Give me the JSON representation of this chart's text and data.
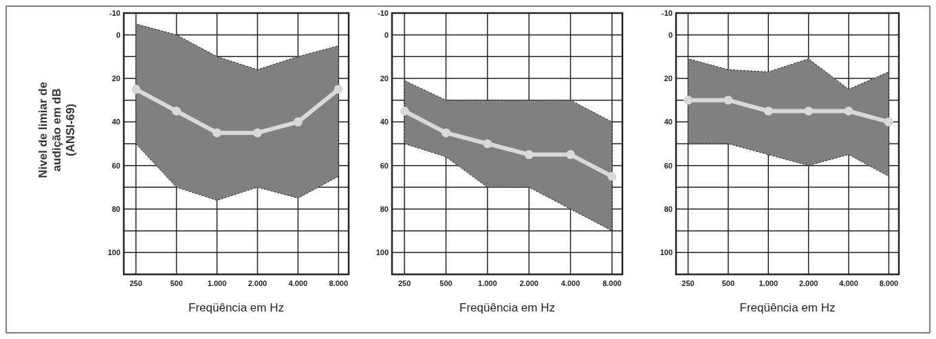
{
  "chart_data": [
    {
      "type": "line",
      "ylabel": "Nivel de limiar de\naudição em  dB\n(ANSI-69)",
      "xlabel": "Freqüência em Hz",
      "categories": [
        "250",
        "500",
        "1.000",
        "2.000",
        "4.000",
        "8.000"
      ],
      "ylim": [
        110,
        -10
      ],
      "yticks": [
        -10,
        0,
        {
          "value": 10,
          "label": null
        },
        20,
        {
          "value": 30,
          "label": null
        },
        40,
        {
          "value": 50,
          "label": null
        },
        60,
        {
          "value": 70,
          "label": null
        },
        80,
        {
          "value": 90,
          "label": null
        },
        100
      ],
      "grid": true,
      "marker": "circle",
      "line_style": "solid",
      "series": [
        {
          "color": "#d9d9d9",
          "values": [
            25,
            35,
            45,
            45,
            40,
            25
          ],
          "lower": [
            -5,
            0,
            10,
            16,
            10,
            5
          ],
          "upper": [
            50,
            70,
            76,
            70,
            75,
            65
          ]
        }
      ]
    },
    {
      "type": "line",
      "xlabel": "Freqüência em Hz",
      "categories": [
        "250",
        "500",
        "1.000",
        "2.000",
        "4.000",
        "8.000"
      ],
      "ylim": [
        110,
        -10
      ],
      "yticks": [
        -10,
        0,
        {
          "value": 10,
          "label": null
        },
        20,
        {
          "value": 30,
          "label": null
        },
        40,
        {
          "value": 50,
          "label": null
        },
        60,
        {
          "value": 70,
          "label": null
        },
        80,
        {
          "value": 90,
          "label": null
        },
        100
      ],
      "grid": true,
      "marker": "circle",
      "line_style": "solid",
      "series": [
        {
          "color": "#d9d9d9",
          "values": [
            35,
            45,
            50,
            55,
            55,
            65
          ],
          "lower": [
            21,
            30,
            30,
            30,
            30,
            40
          ],
          "upper": [
            50,
            56,
            70,
            70,
            80,
            90
          ]
        }
      ]
    },
    {
      "type": "line",
      "xlabel": "Freqüência em Hz",
      "categories": [
        "250",
        "500",
        "1.000",
        "2.000",
        "4.000",
        "8.000"
      ],
      "ylim": [
        110,
        -10
      ],
      "yticks": [
        -10,
        0,
        {
          "value": 10,
          "label": null
        },
        20,
        {
          "value": 30,
          "label": null
        },
        40,
        {
          "value": 50,
          "label": null
        },
        60,
        {
          "value": 70,
          "label": null
        },
        80,
        {
          "value": 90,
          "label": null
        },
        100
      ],
      "grid": true,
      "marker": "circle",
      "line_style": "solid",
      "series": [
        {
          "color": "#d9d9d9",
          "values": [
            30,
            30,
            35,
            35,
            35,
            40
          ],
          "lower": [
            11,
            16,
            17,
            11,
            25,
            17
          ],
          "upper": [
            50,
            50,
            55,
            60,
            55,
            65
          ]
        }
      ]
    }
  ]
}
